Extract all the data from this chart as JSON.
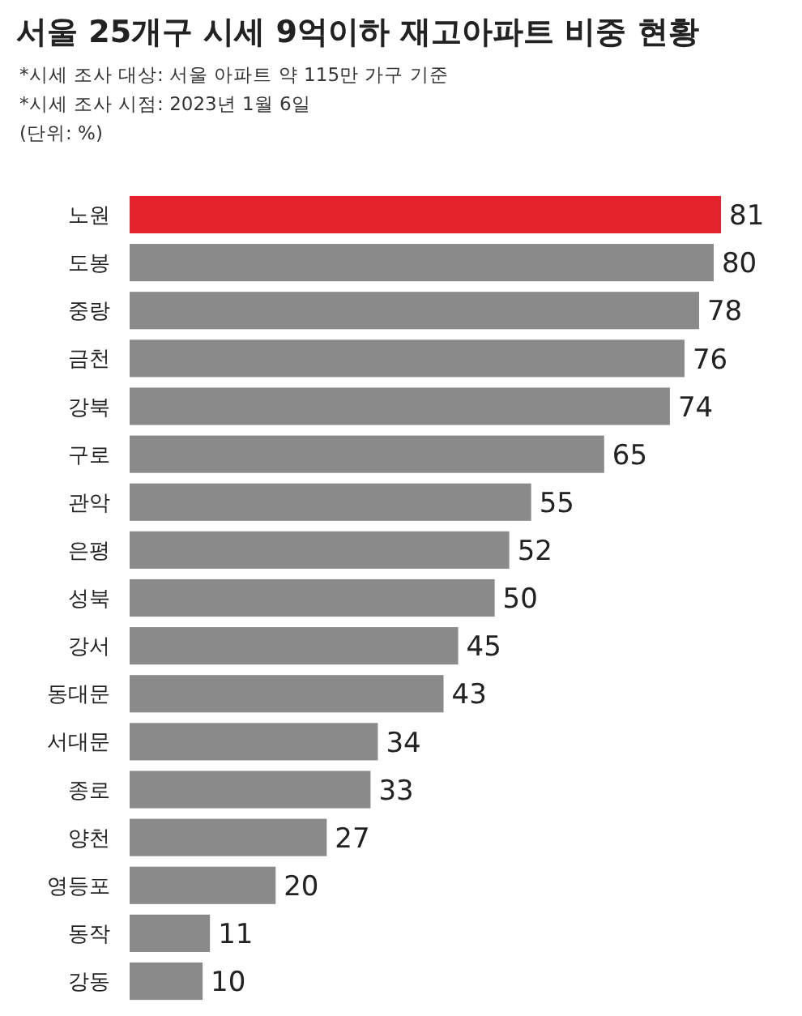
{
  "chart_data": {
    "type": "bar",
    "orientation": "horizontal",
    "title": "서울 25개구 시세 9억이하 재고아파트 비중 현황",
    "subtitle": "*시세 조사 대상: 서울 아파트 약 115만 가구 기준\n*시세 조사 시점: 2023년 1월 6일",
    "annotations": [
      "(단위: %)"
    ],
    "categories": [
      "노원",
      "도봉",
      "중랑",
      "금천",
      "강북",
      "구로",
      "관악",
      "은평",
      "성북",
      "강서",
      "동대문",
      "서대문",
      "종로",
      "양천",
      "영등포",
      "동작",
      "강동"
    ],
    "values": [
      81,
      80,
      78,
      76,
      74,
      65,
      55,
      52,
      50,
      45,
      43,
      34,
      33,
      27,
      20,
      11,
      10
    ],
    "colors": [
      "#e3222b",
      "#8a8a8a",
      "#8a8a8a",
      "#8a8a8a",
      "#8a8a8a",
      "#8a8a8a",
      "#8a8a8a",
      "#8a8a8a",
      "#8a8a8a",
      "#8a8a8a",
      "#8a8a8a",
      "#8a8a8a",
      "#8a8a8a",
      "#8a8a8a",
      "#8a8a8a",
      "#8a8a8a",
      "#8a8a8a"
    ],
    "data_labels": true,
    "grid": false
  }
}
